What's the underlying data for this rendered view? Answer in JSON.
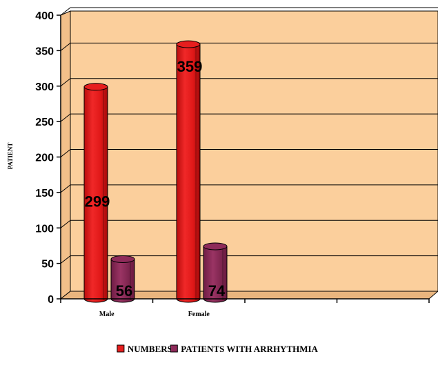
{
  "chart_data": {
    "type": "bar",
    "categories": [
      "Male",
      "Female"
    ],
    "series": [
      {
        "name": "NUMBERS",
        "values": [
          299,
          359
        ],
        "color": "#e61e1e"
      },
      {
        "name": "PATIENTS WITH ARRHYTHMIA",
        "values": [
          56,
          74
        ],
        "color": "#8e2b5a"
      }
    ],
    "ylabel": "PATIENT",
    "xlabel": "",
    "ylim": [
      0,
      400
    ],
    "yticks": [
      0,
      50,
      100,
      150,
      200,
      250,
      300,
      350,
      400
    ],
    "grid": true,
    "legend": "bottom",
    "plot_background": "#fbcf9c"
  }
}
